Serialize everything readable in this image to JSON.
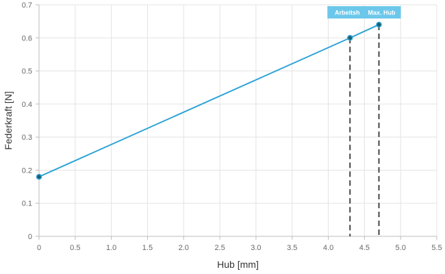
{
  "chart_data": {
    "type": "line",
    "xlabel": "Hub [mm]",
    "ylabel": "Federkraft [N]",
    "xlim": [
      0,
      5.5
    ],
    "ylim": [
      0,
      0.7
    ],
    "x_ticks": [
      "0",
      "0.5",
      "1.0",
      "1.5",
      "2.0",
      "2.5",
      "3.0",
      "3.5",
      "4.0",
      "4.5",
      "5.0",
      "5.5"
    ],
    "y_ticks": [
      "0",
      "0.1",
      "0.2",
      "0.3",
      "0.4",
      "0.5",
      "0.6",
      "0.7"
    ],
    "grid": true,
    "series": [
      {
        "color": "#2ea3d8",
        "points": [
          {
            "x": 0,
            "y": 0.18
          },
          {
            "x": 4.3,
            "y": 0.6
          },
          {
            "x": 4.7,
            "y": 0.64
          }
        ]
      }
    ],
    "annotations": [
      {
        "label": "Arbeitsh",
        "x": 4.3,
        "y": 0.6
      },
      {
        "label": "Max. Hub",
        "x": 4.7,
        "y": 0.64
      }
    ],
    "colors": {
      "line": "#2ea3d8",
      "marker_fill": "#1c5f6e",
      "annotation_bg": "#6cc8ea",
      "dashed_line": "#444444",
      "grid": "#e3e3e3",
      "axis": "#bbbbbb"
    }
  }
}
